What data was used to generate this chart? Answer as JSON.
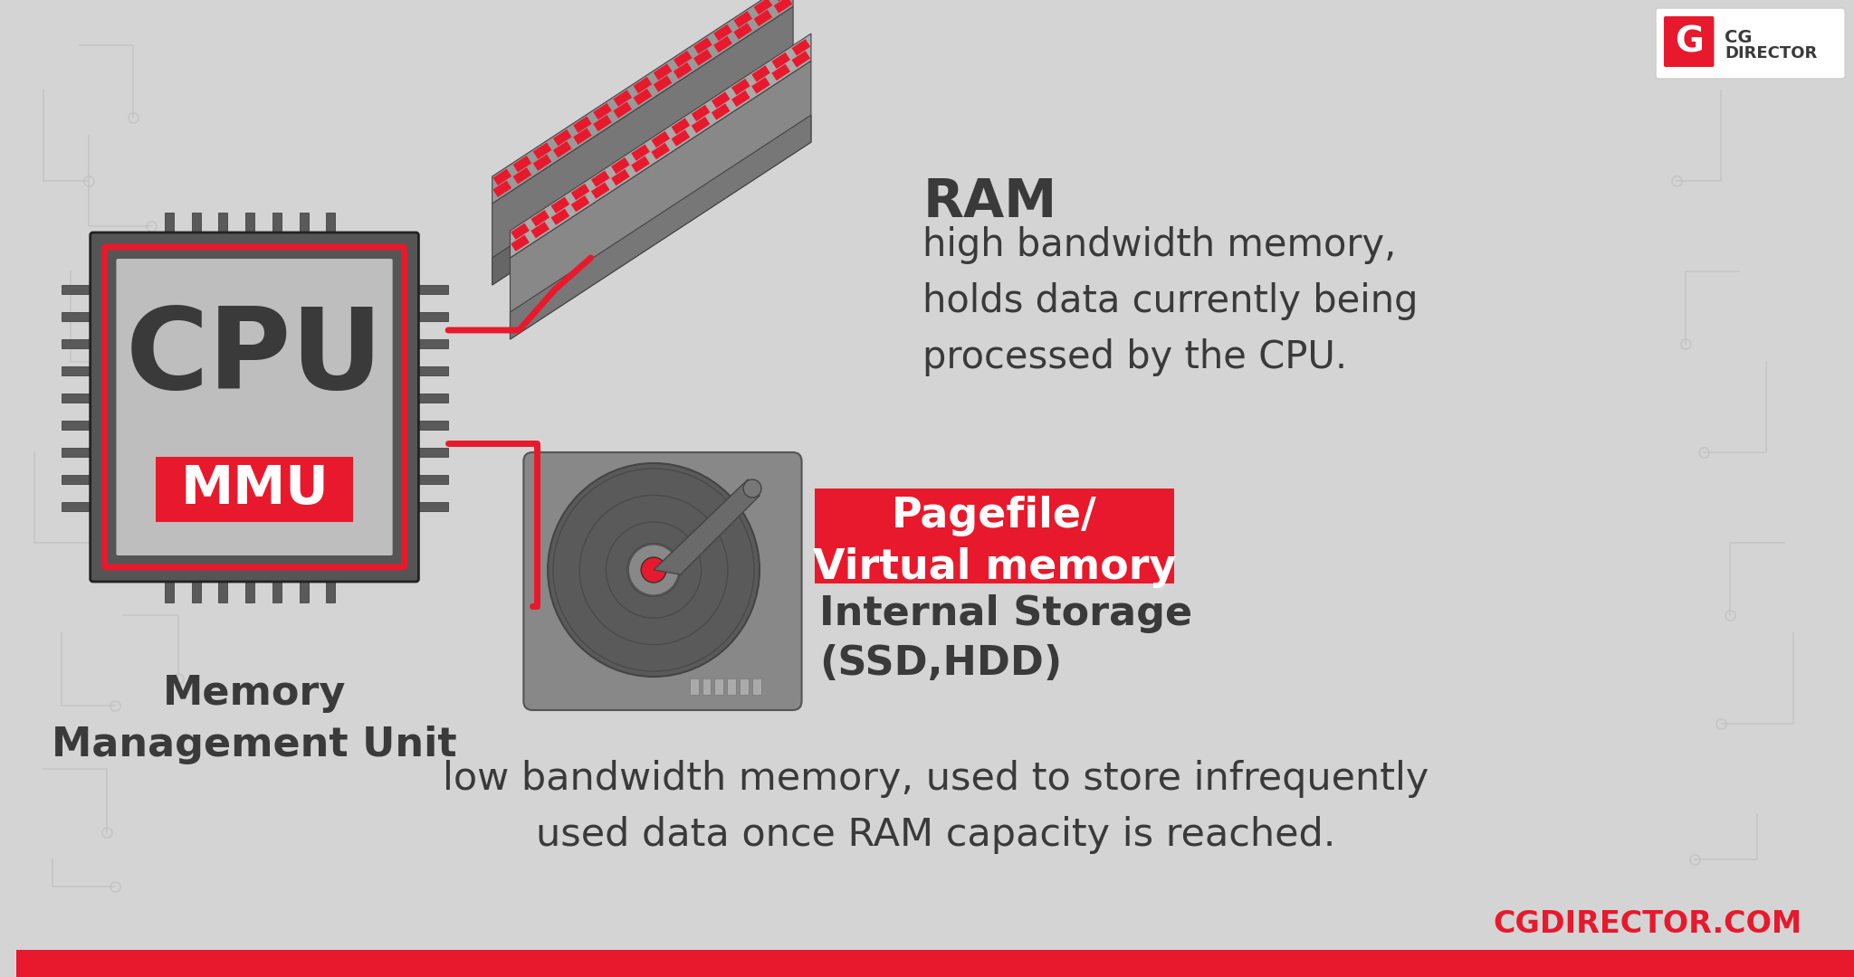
{
  "bg_color": "#d4d4d4",
  "accent_red": "#e8192c",
  "dark_gray": "#3a3a3a",
  "mid_gray": "#6a6a6a",
  "light_gray": "#b0b0b0",
  "white": "#ffffff",
  "cpu_label": "CPU",
  "mmu_label": "MMU",
  "memory_label": "Memory\nManagement Unit",
  "ram_title": "RAM",
  "ram_desc": "high bandwidth memory,\nholds data currently being\nprocessed by the CPU.",
  "pagefile_label": "Pagefile/\nVirtual memory",
  "storage_label": "Internal Storage\n(SSD,HDD)",
  "bottom_desc": "low bandwidth memory, used to store infrequently\nused data once RAM capacity is reached.",
  "footer": "CGDIRECTOR.COM"
}
